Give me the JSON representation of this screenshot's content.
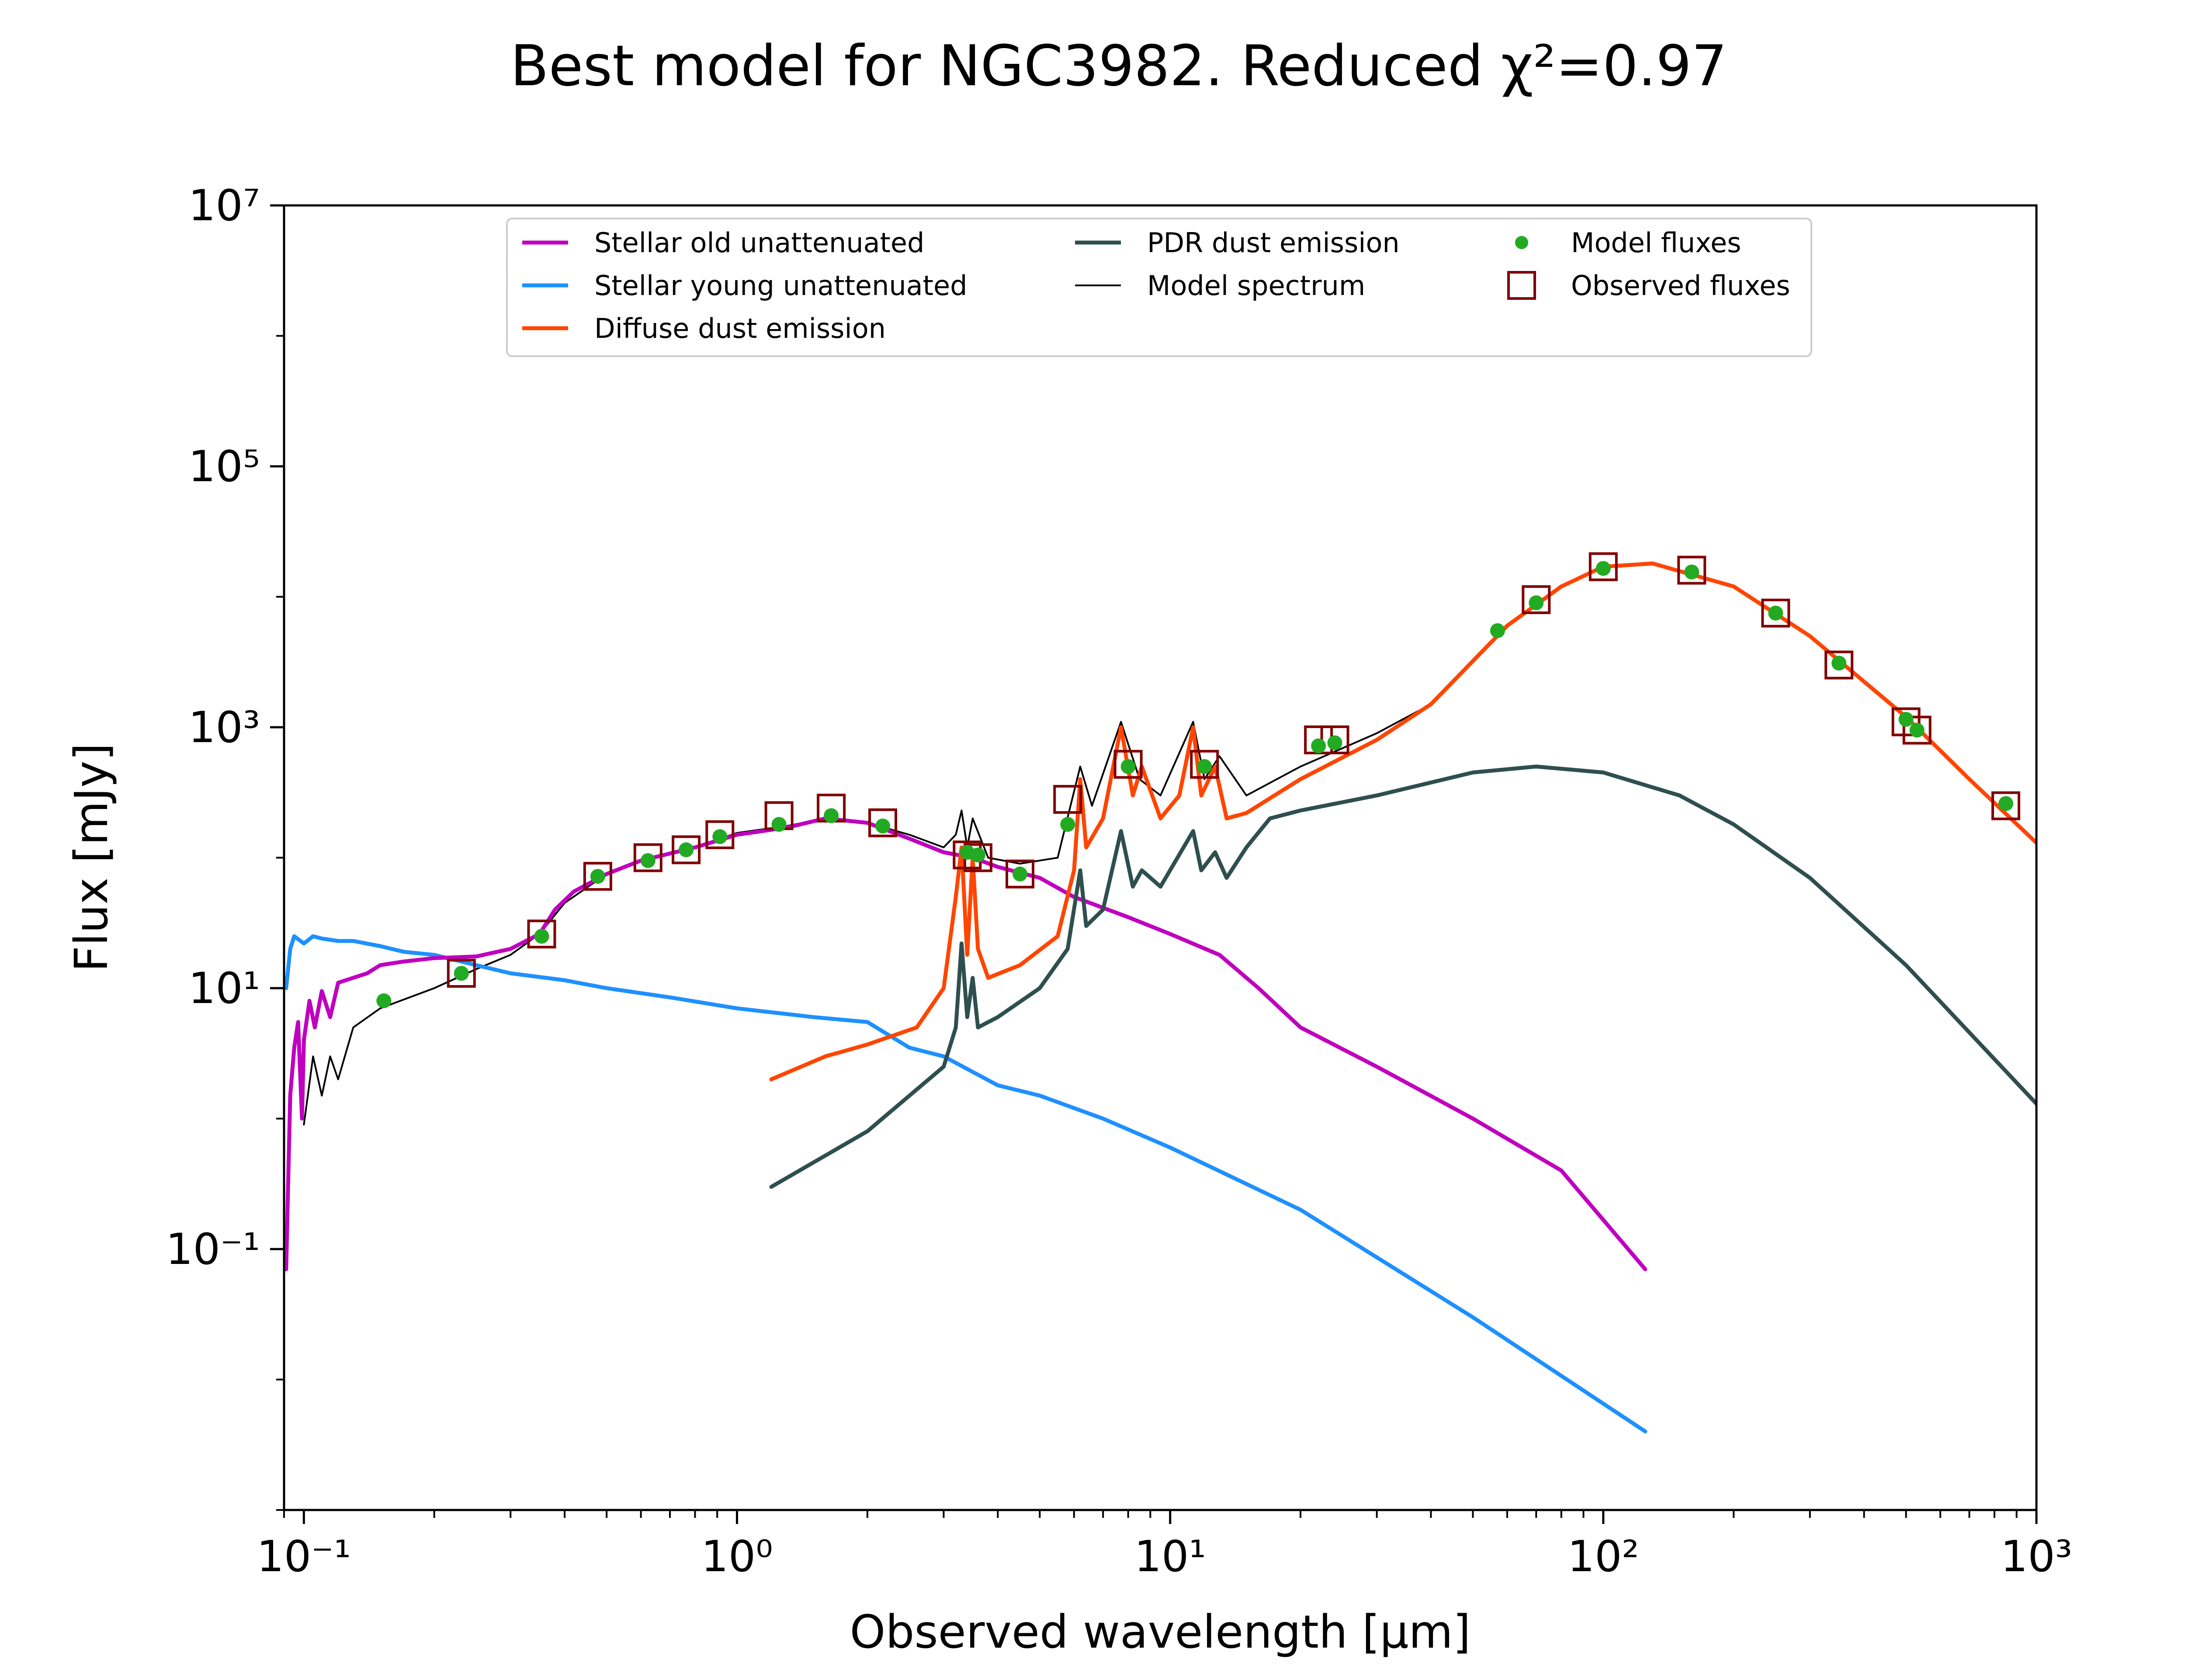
{
  "chart_data": {
    "type": "line",
    "title": "Best model for NGC3982. Reduced χ²=0.97",
    "xlabel": "Observed wavelength [μm]",
    "ylabel": "Flux [mJy]",
    "xscale": "log",
    "yscale": "log",
    "xlim": [
      0.09,
      1000
    ],
    "ylim": [
      0.001,
      10000000
    ],
    "grid": false,
    "legend_position": "top-center",
    "x_ticks": [
      {
        "value": 0.1,
        "label": "10⁻¹"
      },
      {
        "value": 1,
        "label": "10⁰"
      },
      {
        "value": 10,
        "label": "10¹"
      },
      {
        "value": 100,
        "label": "10²"
      },
      {
        "value": 1000,
        "label": "10³"
      }
    ],
    "y_ticks": [
      {
        "value": 0.1,
        "label": "10⁻¹"
      },
      {
        "value": 10,
        "label": "10¹"
      },
      {
        "value": 1000,
        "label": "10³"
      },
      {
        "value": 100000,
        "label": "10⁵"
      },
      {
        "value": 10000000,
        "label": "10⁷"
      }
    ],
    "series": [
      {
        "name": "Stellar old unattenuated",
        "color": "#bf00bf",
        "style": "line",
        "points": [
          [
            0.091,
            0.07
          ],
          [
            0.093,
            1.5
          ],
          [
            0.095,
            3.5
          ],
          [
            0.097,
            5.5
          ],
          [
            0.099,
            1.0
          ],
          [
            0.1,
            4.0
          ],
          [
            0.103,
            8.0
          ],
          [
            0.106,
            5.0
          ],
          [
            0.11,
            9.5
          ],
          [
            0.115,
            6.0
          ],
          [
            0.12,
            11.0
          ],
          [
            0.13,
            12.0
          ],
          [
            0.14,
            13.0
          ],
          [
            0.15,
            15.0
          ],
          [
            0.17,
            16.0
          ],
          [
            0.2,
            17.0
          ],
          [
            0.25,
            17.5
          ],
          [
            0.3,
            20.0
          ],
          [
            0.35,
            26.0
          ],
          [
            0.38,
            40.0
          ],
          [
            0.42,
            55.0
          ],
          [
            0.5,
            75.0
          ],
          [
            0.6,
            95.0
          ],
          [
            0.8,
            120.0
          ],
          [
            1.0,
            150.0
          ],
          [
            1.3,
            170.0
          ],
          [
            1.6,
            200.0
          ],
          [
            2.0,
            185.0
          ],
          [
            2.5,
            140.0
          ],
          [
            3.0,
            110.0
          ],
          [
            3.5,
            100.0
          ],
          [
            4.0,
            85.0
          ],
          [
            5.0,
            70.0
          ],
          [
            6.0,
            50.0
          ],
          [
            8.0,
            35.0
          ],
          [
            10.0,
            26.0
          ],
          [
            13.0,
            18.0
          ],
          [
            16.0,
            10.0
          ],
          [
            20.0,
            5.0
          ],
          [
            30.0,
            2.5
          ],
          [
            50.0,
            1.0
          ],
          [
            80.0,
            0.4
          ],
          [
            125.0,
            0.07
          ]
        ]
      },
      {
        "name": "Stellar young unattenuated",
        "color": "#1e90ff",
        "style": "line",
        "points": [
          [
            0.091,
            10.0
          ],
          [
            0.093,
            20.0
          ],
          [
            0.095,
            25.0
          ],
          [
            0.1,
            22.0
          ],
          [
            0.105,
            25.0
          ],
          [
            0.11,
            24.0
          ],
          [
            0.12,
            23.0
          ],
          [
            0.13,
            23.0
          ],
          [
            0.15,
            21.0
          ],
          [
            0.17,
            19.0
          ],
          [
            0.2,
            18.0
          ],
          [
            0.25,
            15.0
          ],
          [
            0.3,
            13.0
          ],
          [
            0.4,
            11.5
          ],
          [
            0.5,
            10.0
          ],
          [
            0.7,
            8.5
          ],
          [
            1.0,
            7.0
          ],
          [
            1.5,
            6.0
          ],
          [
            2.0,
            5.5
          ],
          [
            2.5,
            3.5
          ],
          [
            3.0,
            3.0
          ],
          [
            4.0,
            1.8
          ],
          [
            5.0,
            1.5
          ],
          [
            7.0,
            1.0
          ],
          [
            10.0,
            0.6
          ],
          [
            20.0,
            0.2
          ],
          [
            50.0,
            0.03
          ],
          [
            125.0,
            0.004
          ]
        ]
      },
      {
        "name": "Diffuse dust emission",
        "color": "#ff4500",
        "style": "line",
        "points": [
          [
            1.2,
            2.0
          ],
          [
            1.6,
            3.0
          ],
          [
            2.0,
            3.7
          ],
          [
            2.6,
            5.0
          ],
          [
            3.0,
            10.0
          ],
          [
            3.2,
            50.0
          ],
          [
            3.3,
            120.0
          ],
          [
            3.4,
            18.0
          ],
          [
            3.5,
            100.0
          ],
          [
            3.6,
            20.0
          ],
          [
            3.8,
            12.0
          ],
          [
            4.5,
            15.0
          ],
          [
            5.5,
            25.0
          ],
          [
            6.0,
            80.0
          ],
          [
            6.2,
            400.0
          ],
          [
            6.4,
            120.0
          ],
          [
            7.0,
            200.0
          ],
          [
            7.7,
            1000.0
          ],
          [
            8.2,
            300.0
          ],
          [
            8.6,
            500.0
          ],
          [
            9.5,
            200.0
          ],
          [
            10.5,
            300.0
          ],
          [
            11.3,
            1000.0
          ],
          [
            11.8,
            300.0
          ],
          [
            12.7,
            500.0
          ],
          [
            13.5,
            200.0
          ],
          [
            15.0,
            220.0
          ],
          [
            20.0,
            400.0
          ],
          [
            30.0,
            800.0
          ],
          [
            40.0,
            1500.0
          ],
          [
            60.0,
            6000.0
          ],
          [
            80.0,
            12000.0
          ],
          [
            100.0,
            17000.0
          ],
          [
            130.0,
            18000.0
          ],
          [
            200.0,
            12000.0
          ],
          [
            300.0,
            5000.0
          ],
          [
            500.0,
            1200.0
          ],
          [
            700.0,
            400.0
          ],
          [
            1000.0,
            130.0
          ]
        ]
      },
      {
        "name": "PDR dust emission",
        "color": "#2f4f4f",
        "style": "line",
        "points": [
          [
            1.2,
            0.3
          ],
          [
            2.0,
            0.8
          ],
          [
            3.0,
            2.5
          ],
          [
            3.2,
            5.0
          ],
          [
            3.3,
            22.0
          ],
          [
            3.4,
            6.0
          ],
          [
            3.5,
            12.0
          ],
          [
            3.6,
            5.0
          ],
          [
            4.0,
            6.0
          ],
          [
            5.0,
            10.0
          ],
          [
            5.8,
            20.0
          ],
          [
            6.2,
            80.0
          ],
          [
            6.4,
            30.0
          ],
          [
            7.0,
            40.0
          ],
          [
            7.7,
            160.0
          ],
          [
            8.2,
            60.0
          ],
          [
            8.6,
            80.0
          ],
          [
            9.5,
            60.0
          ],
          [
            11.3,
            160.0
          ],
          [
            11.8,
            80.0
          ],
          [
            12.7,
            110.0
          ],
          [
            13.5,
            70.0
          ],
          [
            15.0,
            120.0
          ],
          [
            17.0,
            200.0
          ],
          [
            20.0,
            230.0
          ],
          [
            30.0,
            300.0
          ],
          [
            50.0,
            450.0
          ],
          [
            70.0,
            500.0
          ],
          [
            100.0,
            450.0
          ],
          [
            150.0,
            300.0
          ],
          [
            200.0,
            180.0
          ],
          [
            300.0,
            70.0
          ],
          [
            500.0,
            15.0
          ],
          [
            1000.0,
            1.3
          ]
        ]
      },
      {
        "name": "Model spectrum",
        "color": "#000000",
        "style": "thin-line",
        "points": [
          [
            0.1,
            0.9
          ],
          [
            0.105,
            3.0
          ],
          [
            0.11,
            1.5
          ],
          [
            0.115,
            3.0
          ],
          [
            0.12,
            2.0
          ],
          [
            0.13,
            5.0
          ],
          [
            0.15,
            7.0
          ],
          [
            0.2,
            10.0
          ],
          [
            0.25,
            14.0
          ],
          [
            0.3,
            18.0
          ],
          [
            0.35,
            26.0
          ],
          [
            0.4,
            45.0
          ],
          [
            0.5,
            75.0
          ],
          [
            0.6,
            95.0
          ],
          [
            0.8,
            120.0
          ],
          [
            1.0,
            155.0
          ],
          [
            1.3,
            175.0
          ],
          [
            1.6,
            200.0
          ],
          [
            2.0,
            185.0
          ],
          [
            2.5,
            150.0
          ],
          [
            3.0,
            120.0
          ],
          [
            3.2,
            150.0
          ],
          [
            3.3,
            230.0
          ],
          [
            3.4,
            120.0
          ],
          [
            3.5,
            200.0
          ],
          [
            3.8,
            100.0
          ],
          [
            4.5,
            90.0
          ],
          [
            5.5,
            100.0
          ],
          [
            6.2,
            500.0
          ],
          [
            6.6,
            250.0
          ],
          [
            7.7,
            1100.0
          ],
          [
            8.5,
            400.0
          ],
          [
            9.5,
            300.0
          ],
          [
            11.3,
            1100.0
          ],
          [
            12.0,
            400.0
          ],
          [
            13.0,
            600.0
          ],
          [
            15.0,
            300.0
          ],
          [
            20.0,
            500.0
          ],
          [
            30.0,
            900.0
          ],
          [
            40.0,
            1500.0
          ],
          [
            60.0,
            6000.0
          ],
          [
            80.0,
            12000.0
          ],
          [
            100.0,
            17000.0
          ],
          [
            130.0,
            18000.0
          ],
          [
            200.0,
            12000.0
          ],
          [
            300.0,
            5000.0
          ],
          [
            500.0,
            1200.0
          ],
          [
            700.0,
            400.0
          ],
          [
            1000.0,
            130.0
          ]
        ]
      },
      {
        "name": "Model fluxes",
        "color": "#22aa22",
        "style": "markers",
        "points": [
          [
            0.153,
            8.0
          ],
          [
            0.231,
            13.0
          ],
          [
            0.354,
            25.0
          ],
          [
            0.477,
            72.0
          ],
          [
            0.623,
            95.0
          ],
          [
            0.763,
            115.0
          ],
          [
            0.913,
            145.0
          ],
          [
            1.25,
            180.0
          ],
          [
            1.65,
            210.0
          ],
          [
            2.17,
            175.0
          ],
          [
            3.4,
            110.0
          ],
          [
            3.6,
            105.0
          ],
          [
            4.5,
            75.0
          ],
          [
            5.8,
            180.0
          ],
          [
            8.0,
            500.0
          ],
          [
            12.0,
            500.0
          ],
          [
            22.0,
            720.0
          ],
          [
            24.0,
            760.0
          ],
          [
            57.0,
            5500.0
          ],
          [
            70.0,
            9000.0
          ],
          [
            100.0,
            16500.0
          ],
          [
            160.0,
            15500.0
          ],
          [
            250.0,
            7500.0
          ],
          [
            350.0,
            3100.0
          ],
          [
            500.0,
            1150.0
          ],
          [
            530.0,
            950.0
          ],
          [
            850.0,
            260.0
          ]
        ]
      },
      {
        "name": "Observed fluxes",
        "color": "#800000",
        "style": "squares",
        "points": [
          [
            0.231,
            13.0
          ],
          [
            0.354,
            26.0
          ],
          [
            0.477,
            72.0
          ],
          [
            0.623,
            100.0
          ],
          [
            0.763,
            115.0
          ],
          [
            0.913,
            150.0
          ],
          [
            1.25,
            210.0
          ],
          [
            1.65,
            240.0
          ],
          [
            2.17,
            185.0
          ],
          [
            3.4,
            105.0
          ],
          [
            3.6,
            100.0
          ],
          [
            4.5,
            75.0
          ],
          [
            5.8,
            280.0
          ],
          [
            8.0,
            520.0
          ],
          [
            12.0,
            520.0
          ],
          [
            22.0,
            800.0
          ],
          [
            24.0,
            800.0
          ],
          [
            70.0,
            9500.0
          ],
          [
            100.0,
            17000.0
          ],
          [
            160.0,
            16000.0
          ],
          [
            250.0,
            7500.0
          ],
          [
            350.0,
            3000.0
          ],
          [
            500.0,
            1100.0
          ],
          [
            530.0,
            950.0
          ],
          [
            850.0,
            250.0
          ]
        ]
      }
    ]
  }
}
